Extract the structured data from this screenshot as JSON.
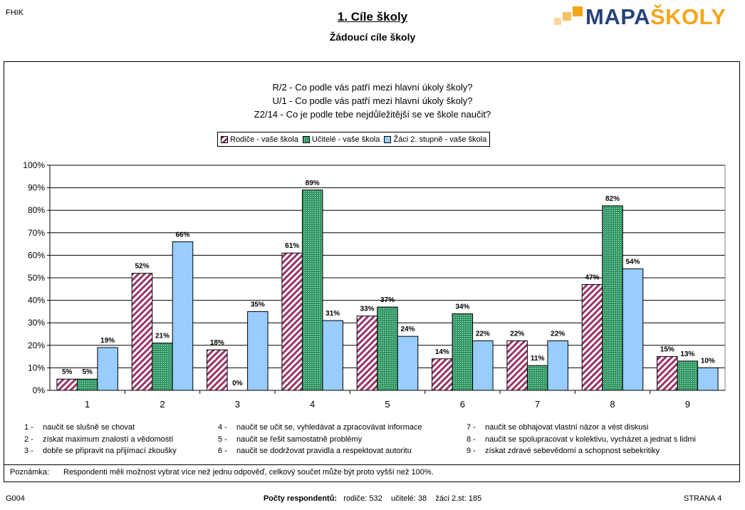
{
  "header": {
    "code": "FHIK",
    "title": "1. Cíle školy",
    "subtitle": "Žádoucí cíle školy",
    "logo_part1": "MAPA",
    "logo_part2": "ŠKOLY",
    "brand_blue": "#26427a",
    "brand_orange": "#f4a51c"
  },
  "questions": [
    "R/2 - Co podle vás patří mezi hlavní úkoly školy?",
    "U/1 - Co podle vás patří mezi hlavní úkoly školy?",
    "Z2/14 - Co je podle tebe nejdůležitější se ve škole naučit?"
  ],
  "chart_data": {
    "type": "bar",
    "categories": [
      "1",
      "2",
      "3",
      "4",
      "5",
      "6",
      "7",
      "8",
      "9"
    ],
    "series": [
      {
        "name": "Rodiče - vaše škola",
        "values": [
          5,
          52,
          18,
          61,
          33,
          14,
          22,
          47,
          15
        ],
        "labels": [
          "5%",
          "52%",
          "18%",
          "61%",
          "33%",
          "14%",
          "22%",
          "47%",
          "15%"
        ],
        "color": "#993366",
        "pattern": "diagonal-stripes"
      },
      {
        "name": "Učitelé - vaše škola",
        "values": [
          5,
          21,
          0,
          89,
          37,
          34,
          11,
          82,
          13
        ],
        "labels": [
          "5%",
          "21%",
          "0%",
          "89%",
          "37%",
          "34%",
          "11%",
          "82%",
          "13%"
        ],
        "color": "#339966",
        "pattern": "dots"
      },
      {
        "name": "Žáci 2. stupně - vaše škola",
        "values": [
          19,
          66,
          35,
          31,
          24,
          22,
          22,
          54,
          10
        ],
        "labels": [
          "19%",
          "66%",
          "35%",
          "31%",
          "24%",
          "22%",
          "22%",
          "54%",
          "10%"
        ],
        "color": "#99ccff",
        "pattern": "solid"
      }
    ],
    "ylim": [
      0,
      100
    ],
    "yticks": [
      "0%",
      "10%",
      "20%",
      "30%",
      "40%",
      "50%",
      "60%",
      "70%",
      "80%",
      "90%",
      "100%"
    ],
    "grid": true,
    "legend": "top"
  },
  "category_legend": [
    {
      "num": "1",
      "text": "naučit se slušně se chovat"
    },
    {
      "num": "2",
      "text": "získat maximum znalostí a vědomostí"
    },
    {
      "num": "3",
      "text": "dobře se připravit na přijímací zkoušky"
    },
    {
      "num": "4",
      "text": "naučit se učit se, vyhledávat a zpracovávat informace"
    },
    {
      "num": "5",
      "text": "naučit se řešit samostatně problémy"
    },
    {
      "num": "6",
      "text": "naučit se dodržovat pravidla a respektovat autoritu"
    },
    {
      "num": "7",
      "text": "naučit se obhajovat vlastní názor a vést diskusi"
    },
    {
      "num": "8",
      "text": "naučit se spolupracovat v kolektivu, vycházet a jednat s lidmi"
    },
    {
      "num": "9",
      "text": "získat zdravé sebevědomí a schopnost sebekritiky"
    }
  ],
  "note": {
    "label": "Poznámka:",
    "text": "Respondenti měli možnost vybrat více než jednu odpověď, celkový součet může být proto vyšší než 100%."
  },
  "footer": {
    "code": "G004",
    "respondents_label": "Počty respondentů:",
    "parents": "rodiče: 532",
    "teachers": "učitelé: 38",
    "pupils": "žáci 2.st: 185",
    "page": "STRANA 4"
  }
}
